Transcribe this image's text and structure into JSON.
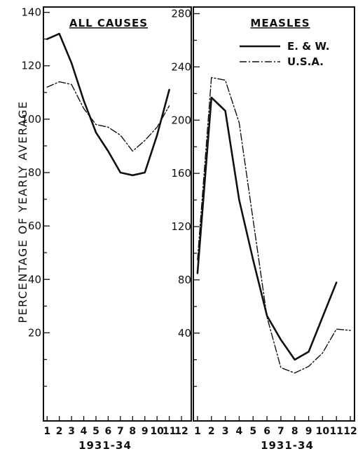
{
  "y_axis_label": "PERCENTAGE OF YEARLY AVERAGE",
  "chart_data": [
    {
      "type": "line",
      "title": "ALL CAUSES",
      "xlabel": "1931-34",
      "ylabel": "PERCENTAGE OF YEARLY AVERAGE",
      "x": [
        1,
        2,
        3,
        4,
        5,
        6,
        7,
        8,
        9,
        10,
        11,
        12
      ],
      "x_tick_labels": [
        "1",
        "2",
        "3",
        "4",
        "5",
        "6",
        "7",
        "8",
        "9",
        "10",
        "11",
        "12"
      ],
      "y_ticks": [
        20,
        40,
        60,
        80,
        100,
        120,
        140
      ],
      "xlim": [
        0.7,
        12.8
      ],
      "ylim": [
        -13,
        142
      ],
      "series": [
        {
          "name": "E. & W.",
          "style": "solid",
          "x": [
            1,
            2,
            3,
            4,
            5,
            6,
            7,
            8,
            9,
            10,
            11
          ],
          "values": [
            130,
            132,
            121,
            107,
            95,
            88,
            80,
            79,
            80,
            94,
            111
          ]
        },
        {
          "name": "U.S.A.",
          "style": "dashdot",
          "x": [
            1,
            2,
            3,
            4,
            5,
            6,
            7,
            8,
            9,
            10,
            11
          ],
          "values": [
            112,
            114,
            113,
            104,
            98,
            97,
            94,
            88,
            92,
            97,
            105
          ]
        }
      ]
    },
    {
      "type": "line",
      "title": "MEASLES",
      "xlabel": "1931-34",
      "x": [
        1,
        2,
        3,
        4,
        5,
        6,
        7,
        8,
        9,
        10,
        11,
        12
      ],
      "x_tick_labels": [
        "1",
        "2",
        "3",
        "4",
        "5",
        "6",
        "7",
        "8",
        "9",
        "10",
        "11",
        "12"
      ],
      "y_ticks": [
        40,
        80,
        120,
        160,
        200,
        240,
        280
      ],
      "xlim": [
        0.7,
        12.3
      ],
      "ylim": [
        -26,
        285
      ],
      "legend": "top-right",
      "series": [
        {
          "name": "E. & W.",
          "style": "solid",
          "x": [
            1,
            2,
            3,
            4,
            5,
            6,
            7,
            8,
            9,
            10,
            11,
            12
          ],
          "values": [
            85,
            217,
            207,
            140,
            95,
            53,
            35,
            20,
            26,
            52,
            78,
            null
          ]
        },
        {
          "name": "U.S.A.",
          "style": "dashdot",
          "x": [
            1,
            2,
            3,
            4,
            5,
            6,
            7,
            8,
            9,
            10,
            11,
            12
          ],
          "values": [
            95,
            232,
            230,
            198,
            125,
            52,
            14,
            10,
            15,
            25,
            43,
            42
          ]
        }
      ]
    }
  ]
}
